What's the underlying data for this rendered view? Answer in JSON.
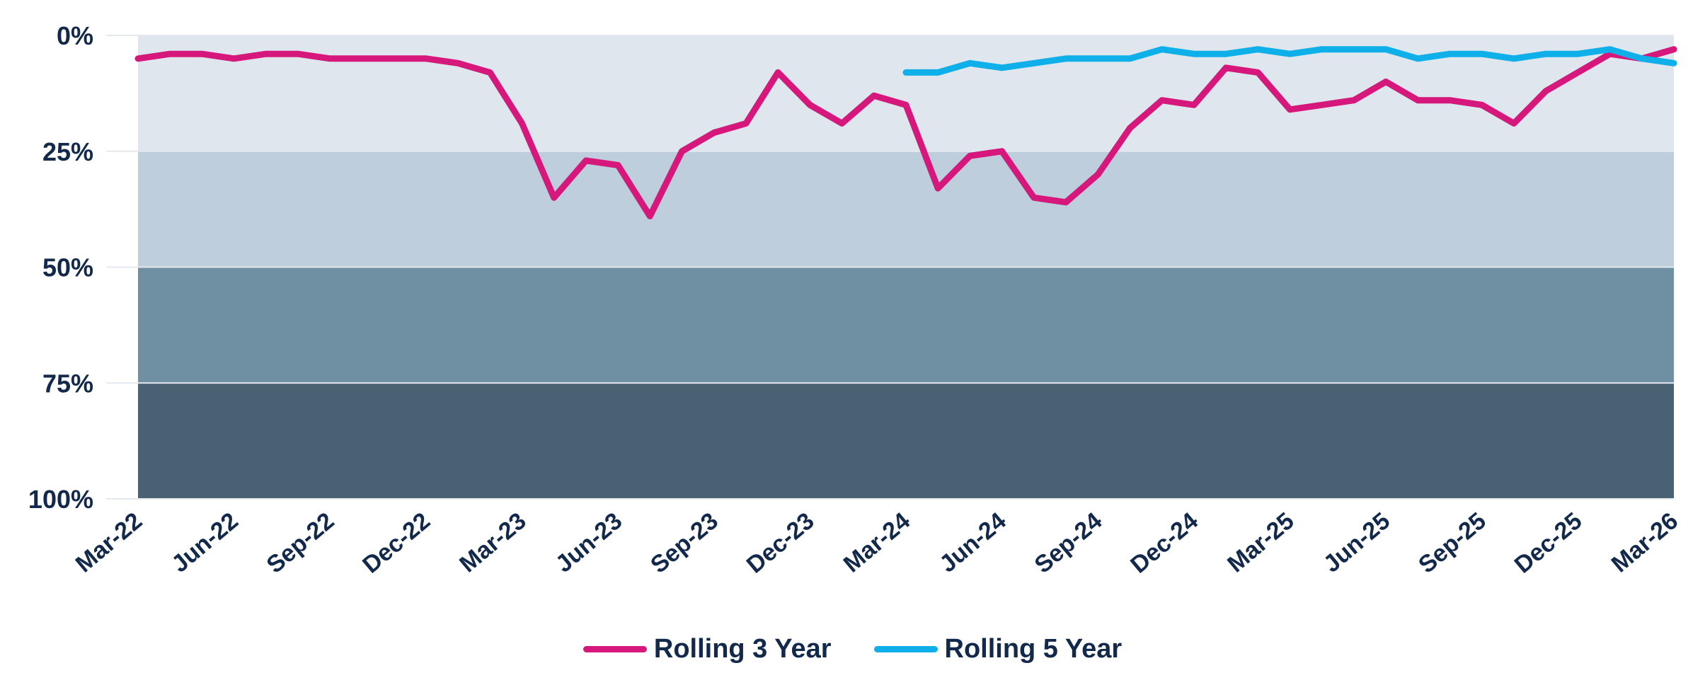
{
  "chart_data": {
    "type": "line",
    "title": "",
    "xlabel": "",
    "ylabel": "",
    "y_axis_inverted": true,
    "ylim": [
      0,
      100
    ],
    "y_ticks": [
      "0%",
      "25%",
      "50%",
      "75%",
      "100%"
    ],
    "x_ticks": [
      "Mar-22",
      "Jun-22",
      "Sep-22",
      "Dec-22",
      "Mar-23",
      "Jun-23",
      "Sep-23",
      "Dec-23",
      "Mar-24",
      "Jun-24",
      "Sep-24",
      "Dec-24",
      "Mar-25",
      "Jun-25",
      "Sep-25",
      "Dec-25",
      "Mar-26"
    ],
    "x_months_count": 49,
    "bands": [
      {
        "from": 0,
        "to": 25,
        "color": "#dfe6ee"
      },
      {
        "from": 25,
        "to": 50,
        "color": "#bfcedc"
      },
      {
        "from": 50,
        "to": 75,
        "color": "#6f90a3"
      },
      {
        "from": 75,
        "to": 100,
        "color": "#486274"
      }
    ],
    "grid": true,
    "legend_position": "bottom",
    "series": [
      {
        "name": "Rolling 3 Year",
        "color": "#d6177c",
        "values": [
          5,
          4,
          4,
          5,
          4,
          4,
          5,
          5,
          5,
          5,
          6,
          8,
          19,
          35,
          27,
          28,
          39,
          25,
          21,
          19,
          8,
          15,
          19,
          13,
          15,
          33,
          26,
          25,
          35,
          36,
          30,
          20,
          14,
          15,
          7,
          8,
          16,
          15,
          14,
          10,
          14,
          14,
          15,
          19,
          12,
          8,
          4,
          5,
          3
        ]
      },
      {
        "name": "Rolling 5 Year",
        "color": "#0fb0ea",
        "start_index": 24,
        "values": [
          8,
          8,
          6,
          7,
          6,
          5,
          5,
          5,
          3,
          4,
          4,
          3,
          4,
          3,
          3,
          3,
          5,
          4,
          4,
          5,
          4,
          4,
          3,
          5,
          6
        ]
      }
    ]
  }
}
